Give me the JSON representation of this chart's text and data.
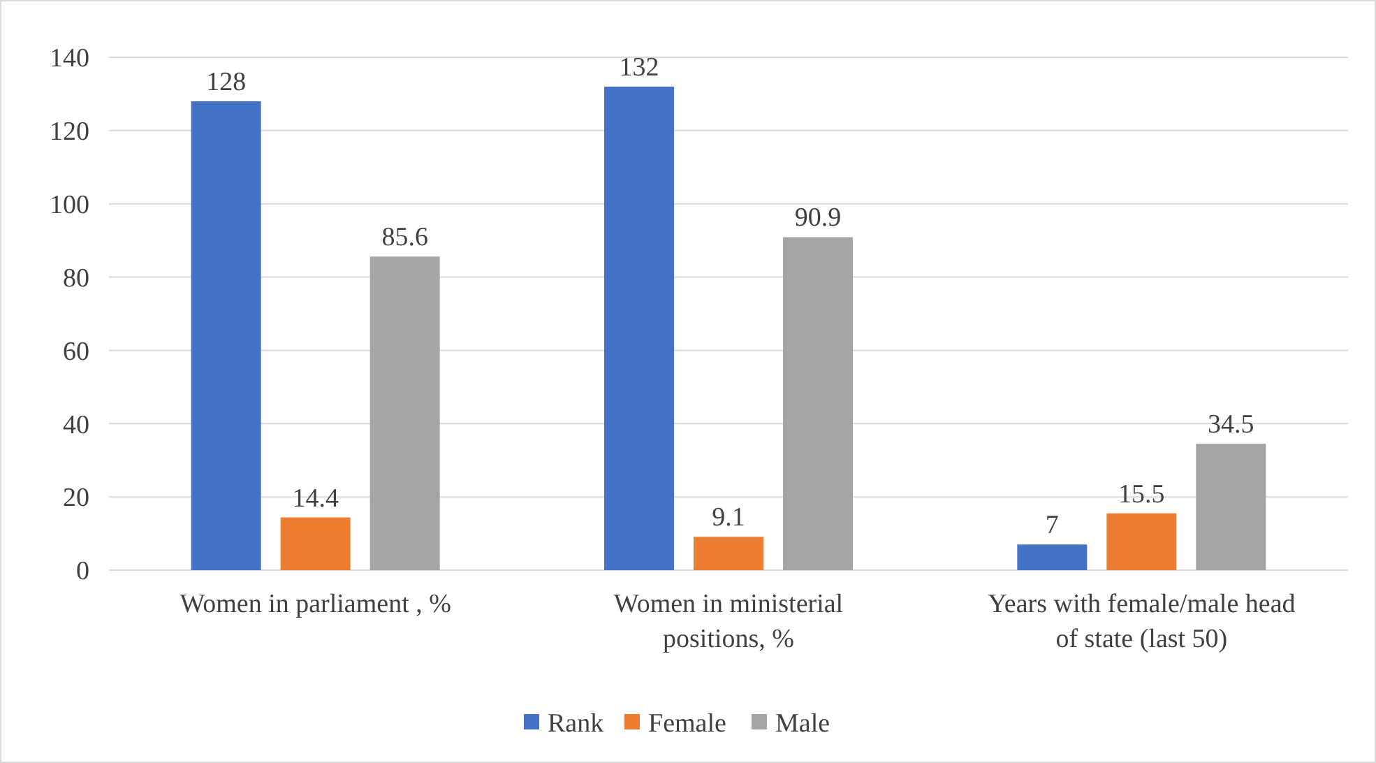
{
  "chart_data": {
    "type": "bar",
    "categories": [
      "Women in parliament , %",
      "Women in ministerial positions, %",
      "Years with female/male head of state (last 50)"
    ],
    "series": [
      {
        "name": "Rank",
        "color": "#4472c4",
        "values": [
          128,
          132,
          7
        ]
      },
      {
        "name": "Female",
        "color": "#ed7d31",
        "values": [
          14.4,
          9.1,
          15.5
        ]
      },
      {
        "name": "Male",
        "color": "#a5a5a5",
        "values": [
          85.6,
          90.9,
          34.5
        ]
      }
    ],
    "ylim": [
      0,
      140
    ],
    "yticks": [
      0,
      20,
      40,
      60,
      80,
      100,
      120,
      140
    ],
    "grid": "y",
    "legend": "bottom",
    "data_labels": true
  }
}
